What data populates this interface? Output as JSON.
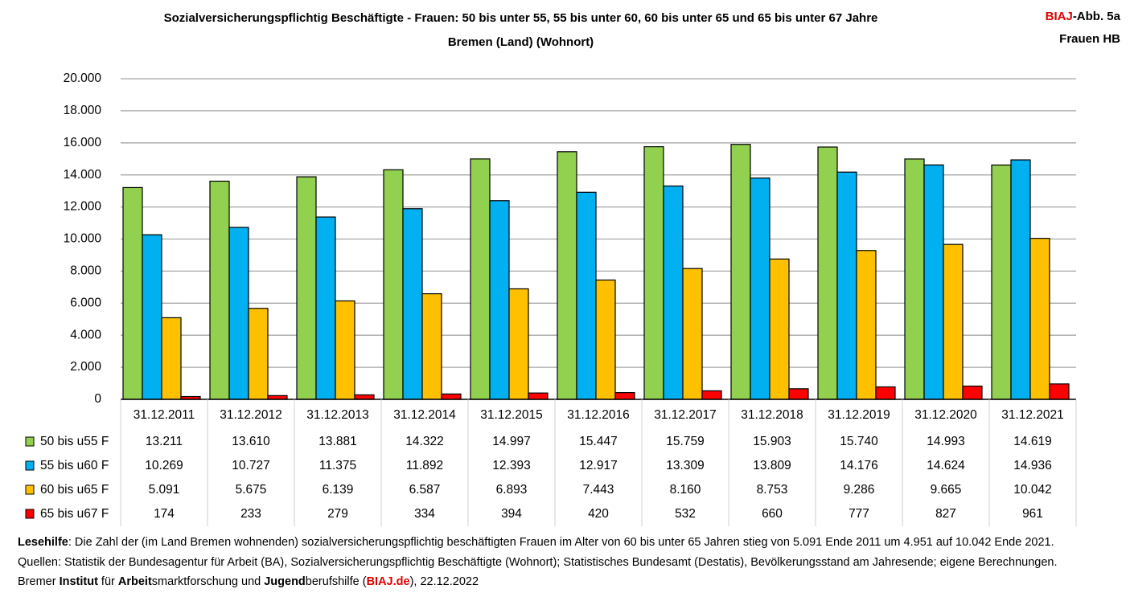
{
  "chart_data": {
    "type": "bar",
    "title": "Sozialversicherungspflichtig Beschäftigte - Frauen: 50 bis unter 55, 55 bis unter 60, 60 bis unter 65 und 65 bis unter 67 Jahre",
    "subtitle": "Bremen (Land) (Wohnort)",
    "categories": [
      "31.12.2011",
      "31.12.2012",
      "31.12.2013",
      "31.12.2014",
      "31.12.2015",
      "31.12.2016",
      "31.12.2017",
      "31.12.2018",
      "31.12.2019",
      "31.12.2020",
      "31.12.2021"
    ],
    "series": [
      {
        "name": "50 bis u55 F",
        "color": "#92d050",
        "values": [
          13211,
          13610,
          13881,
          14322,
          14997,
          15447,
          15759,
          15903,
          15740,
          14993,
          14619
        ],
        "labels": [
          "13.211",
          "13.610",
          "13.881",
          "14.322",
          "14.997",
          "15.447",
          "15.759",
          "15.903",
          "15.740",
          "14.993",
          "14.619"
        ]
      },
      {
        "name": "55 bis u60 F",
        "color": "#00b0f0",
        "values": [
          10269,
          10727,
          11375,
          11892,
          12393,
          12917,
          13309,
          13809,
          14176,
          14624,
          14936
        ],
        "labels": [
          "10.269",
          "10.727",
          "11.375",
          "11.892",
          "12.393",
          "12.917",
          "13.309",
          "13.809",
          "14.176",
          "14.624",
          "14.936"
        ]
      },
      {
        "name": "60 bis u65 F",
        "color": "#ffc000",
        "values": [
          5091,
          5675,
          6139,
          6587,
          6893,
          7443,
          8160,
          8753,
          9286,
          9665,
          10042
        ],
        "labels": [
          "5.091",
          "5.675",
          "6.139",
          "6.587",
          "6.893",
          "7.443",
          "8.160",
          "8.753",
          "9.286",
          "9.665",
          "10.042"
        ]
      },
      {
        "name": "65 bis u67 F",
        "color": "#ff0000",
        "values": [
          174,
          233,
          279,
          334,
          394,
          420,
          532,
          660,
          777,
          827,
          961
        ],
        "labels": [
          "174",
          "233",
          "279",
          "334",
          "394",
          "420",
          "532",
          "660",
          "777",
          "827",
          "961"
        ]
      }
    ],
    "ylim": [
      0,
      20000
    ],
    "yticks": [
      0,
      2000,
      4000,
      6000,
      8000,
      10000,
      12000,
      14000,
      16000,
      18000,
      20000
    ],
    "ytick_labels": [
      "0",
      "2.000",
      "4.000",
      "6.000",
      "8.000",
      "10.000",
      "12.000",
      "14.000",
      "16.000",
      "18.000",
      "20.000"
    ],
    "grid": true,
    "legend": "data table below chart"
  },
  "badge": {
    "brand": "BIAJ",
    "suffix": "-Abb. 5a",
    "line2": "Frauen HB"
  },
  "footer": {
    "line1_bold": "Lesehilfe",
    "line1_rest": ": Die Zahl der (im Land Bremen wohnenden) sozialversicherungspflichtig beschäftigten Frauen im Alter von 60 bis unter 65 Jahren stieg von 5.091 Ende 2011 um 4.951 auf 10.042 Ende 2021.",
    "line2": "Quellen: Statistik der Bundesagentur für Arbeit (BA), Sozialversicherungspflichtig Beschäftigte (Wohnort); Statistisches Bundesamt (Destatis), Bevölkerungsstand am Jahresende; eigene Berechnungen.",
    "line3_a": "Bremer ",
    "line3_b": "Institut",
    "line3_c": " für ",
    "line3_d": "Arbeit",
    "line3_e": "smarktforschung und ",
    "line3_f": "Jugend",
    "line3_g": "berufshilfe (",
    "line3_h": "BIAJ.de",
    "line3_i": "), 22.12.2022"
  }
}
